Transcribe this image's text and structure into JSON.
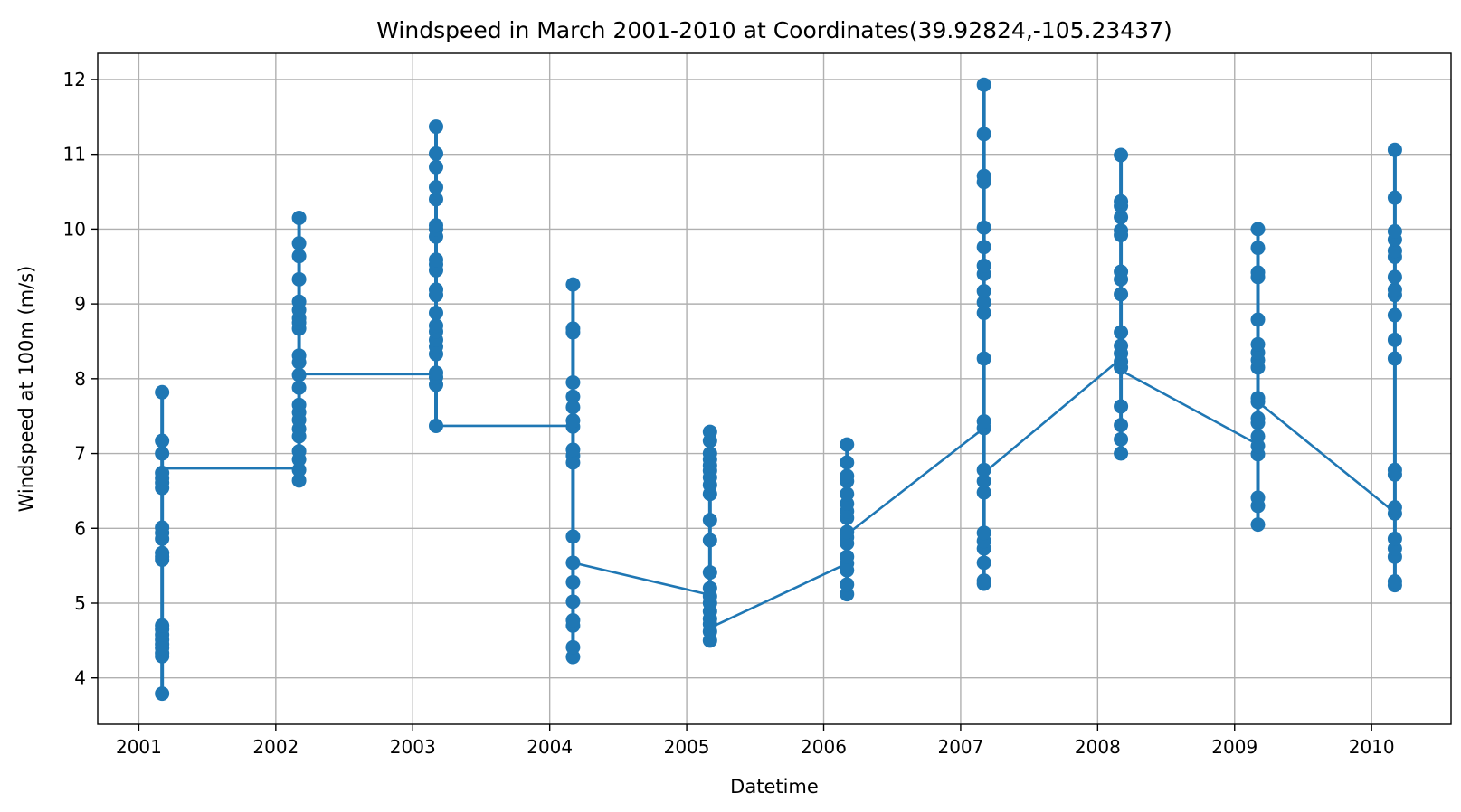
{
  "chart_data": {
    "type": "line",
    "title": "Windspeed in March 2001-2010 at Coordinates(39.92824,-105.23437)",
    "xlabel": "Datetime",
    "ylabel": "Windspeed at 100m (m/s)",
    "xlim": [
      2000.7,
      2010.58
    ],
    "ylim": [
      3.38,
      12.35
    ],
    "grid": true,
    "x_ticks": [
      {
        "value": 2001,
        "label": "2001"
      },
      {
        "value": 2002,
        "label": "2002"
      },
      {
        "value": 2003,
        "label": "2003"
      },
      {
        "value": 2004,
        "label": "2004"
      },
      {
        "value": 2005,
        "label": "2005"
      },
      {
        "value": 2006,
        "label": "2006"
      },
      {
        "value": 2007,
        "label": "2007"
      },
      {
        "value": 2008,
        "label": "2008"
      },
      {
        "value": 2009,
        "label": "2009"
      },
      {
        "value": 2010,
        "label": "2010"
      }
    ],
    "y_ticks": [
      {
        "value": 4,
        "label": "4"
      },
      {
        "value": 5,
        "label": "5"
      },
      {
        "value": 6,
        "label": "6"
      },
      {
        "value": 7,
        "label": "7"
      },
      {
        "value": 8,
        "label": "8"
      },
      {
        "value": 9,
        "label": "9"
      },
      {
        "value": 10,
        "label": "10"
      },
      {
        "value": 11,
        "label": "11"
      },
      {
        "value": 12,
        "label": "12"
      }
    ],
    "series": [
      {
        "color": "#1f77b4",
        "marker": "circle",
        "groups": [
          {
            "x": 2001.17,
            "values": [
              3.79,
              4.29,
              4.33,
              4.4,
              4.45,
              4.51,
              4.58,
              4.65,
              4.7,
              5.58,
              5.62,
              5.67,
              5.86,
              5.94,
              6.01,
              6.54,
              6.61,
              6.67,
              6.74,
              7.0,
              7.17,
              7.82
            ],
            "from": 4.45,
            "to": 6.8
          },
          {
            "x": 2002.17,
            "values": [
              6.64,
              6.78,
              6.92,
              7.03,
              7.23,
              7.33,
              7.45,
              7.55,
              7.65,
              7.88,
              8.05,
              8.22,
              8.31,
              8.67,
              8.75,
              8.81,
              8.92,
              9.03,
              9.33,
              9.64,
              9.81,
              10.15
            ],
            "from": 6.8,
            "to": 8.06
          },
          {
            "x": 2003.17,
            "values": [
              7.37,
              7.92,
              8.02,
              8.08,
              8.33,
              8.43,
              8.52,
              8.63,
              8.71,
              8.88,
              9.12,
              9.19,
              9.45,
              9.53,
              9.59,
              9.9,
              10.0,
              10.05,
              10.4,
              10.56,
              10.83,
              11.01,
              11.37
            ],
            "from": 8.06,
            "to": 7.37
          },
          {
            "x": 2004.17,
            "values": [
              4.28,
              4.41,
              4.7,
              4.77,
              5.02,
              5.28,
              5.54,
              5.89,
              6.88,
              6.97,
              7.05,
              7.36,
              7.44,
              7.62,
              7.76,
              7.95,
              8.62,
              8.67,
              9.26
            ],
            "from": 7.37,
            "to": 5.54
          },
          {
            "x": 2005.17,
            "values": [
              4.5,
              4.62,
              4.72,
              4.79,
              4.89,
              5.0,
              5.09,
              5.2,
              5.41,
              5.84,
              6.11,
              6.46,
              6.58,
              6.68,
              6.77,
              6.84,
              6.92,
              7.0,
              7.17,
              7.29
            ],
            "from": 5.11,
            "to": 4.67
          },
          {
            "x": 2006.17,
            "values": [
              5.12,
              5.25,
              5.44,
              5.53,
              5.62,
              5.8,
              5.88,
              5.95,
              6.14,
              6.23,
              6.33,
              6.46,
              6.63,
              6.7,
              6.88,
              7.12
            ],
            "from": 5.53,
            "to": 5.92
          },
          {
            "x": 2007.17,
            "values": [
              5.26,
              5.3,
              5.54,
              5.73,
              5.83,
              5.94,
              6.48,
              6.63,
              6.78,
              7.34,
              7.43,
              8.27,
              8.88,
              9.02,
              9.17,
              9.4,
              9.51,
              9.76,
              10.02,
              10.63,
              10.71,
              11.27,
              11.93
            ],
            "from": 7.34,
            "to": 6.74
          },
          {
            "x": 2008.17,
            "values": [
              7.0,
              7.19,
              7.38,
              7.63,
              8.15,
              8.23,
              8.34,
              8.44,
              8.62,
              9.13,
              9.33,
              9.43,
              9.92,
              9.98,
              10.16,
              10.31,
              10.37,
              10.99
            ],
            "from": 8.27,
            "to": 8.11
          },
          {
            "x": 2009.17,
            "values": [
              6.05,
              6.3,
              6.41,
              6.99,
              7.1,
              7.23,
              7.41,
              7.47,
              7.69,
              7.74,
              8.15,
              8.25,
              8.35,
              8.46,
              8.79,
              9.36,
              9.42,
              9.75,
              10.0
            ],
            "from": 7.12,
            "to": 7.69
          },
          {
            "x": 2010.17,
            "values": [
              5.24,
              5.29,
              5.62,
              5.73,
              5.86,
              6.2,
              6.28,
              6.72,
              6.78,
              8.27,
              8.52,
              8.85,
              9.12,
              9.19,
              9.36,
              9.63,
              9.71,
              9.86,
              9.97,
              10.42,
              11.06
            ],
            "from": 6.21,
            "to": 6.21
          }
        ]
      }
    ]
  }
}
